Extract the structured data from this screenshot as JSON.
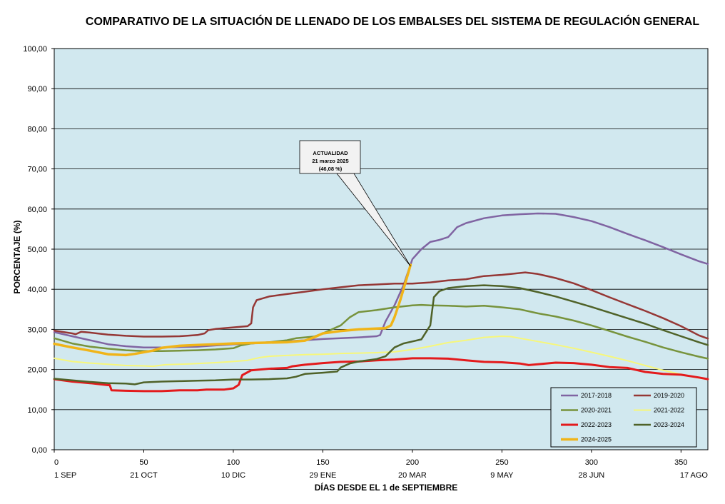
{
  "chart_data": {
    "type": "line",
    "title": "COMPARATIVO DE LA SITUACIÓN DE LLENADO DE LOS EMBALSES DEL SISTEMA DE REGULACIÓN GENERAL",
    "xlabel": "DÍAS DESDE EL 1 de SEPTIEMBRE",
    "ylabel": "PORCENTAJE (%)",
    "xlim": [
      0,
      365
    ],
    "ylim": [
      0,
      100
    ],
    "grid": true,
    "legend_position": "bottom-right",
    "x_ticks": [
      {
        "value": 0,
        "label": "0",
        "date": "1 SEP"
      },
      {
        "value": 50,
        "label": "50",
        "date": "21 OCT"
      },
      {
        "value": 100,
        "label": "100",
        "date": "10 DIC"
      },
      {
        "value": 150,
        "label": "150",
        "date": "29 ENE"
      },
      {
        "value": 200,
        "label": "200",
        "date": "20 MAR"
      },
      {
        "value": 250,
        "label": "250",
        "date": "9 MAY"
      },
      {
        "value": 300,
        "label": "300",
        "date": "28 JUN"
      },
      {
        "value": 350,
        "label": "350",
        "date": "17 AGO"
      }
    ],
    "y_ticks": [
      "0,00",
      "10,00",
      "20,00",
      "30,00",
      "40,00",
      "50,00",
      "60,00",
      "70,00",
      "80,00",
      "90,00",
      "100,00"
    ],
    "annotation": {
      "lines": [
        "ACTUALIDAD",
        "21 marzo 2025",
        "(46,08 %)"
      ],
      "x": 199,
      "y": 46.08
    },
    "series": [
      {
        "name": "2017-2018",
        "color": "#8064a2",
        "width": 2.5,
        "points": [
          [
            0,
            29.3
          ],
          [
            10,
            28.3
          ],
          [
            20,
            27.3
          ],
          [
            30,
            26.3
          ],
          [
            40,
            25.8
          ],
          [
            50,
            25.5
          ],
          [
            60,
            25.5
          ],
          [
            70,
            25.6
          ],
          [
            80,
            25.7
          ],
          [
            90,
            26.0
          ],
          [
            100,
            26.3
          ],
          [
            110,
            26.5
          ],
          [
            120,
            26.8
          ],
          [
            130,
            27.0
          ],
          [
            140,
            27.3
          ],
          [
            150,
            27.6
          ],
          [
            160,
            27.8
          ],
          [
            170,
            28.0
          ],
          [
            180,
            28.3
          ],
          [
            182,
            28.6
          ],
          [
            185,
            32.0
          ],
          [
            190,
            36.0
          ],
          [
            195,
            41.0
          ],
          [
            200,
            47.5
          ],
          [
            205,
            50.0
          ],
          [
            210,
            51.8
          ],
          [
            215,
            52.3
          ],
          [
            220,
            53.0
          ],
          [
            225,
            55.5
          ],
          [
            230,
            56.5
          ],
          [
            240,
            57.7
          ],
          [
            250,
            58.4
          ],
          [
            260,
            58.7
          ],
          [
            270,
            58.9
          ],
          [
            280,
            58.8
          ],
          [
            290,
            58.0
          ],
          [
            300,
            57.0
          ],
          [
            310,
            55.5
          ],
          [
            320,
            53.8
          ],
          [
            330,
            52.2
          ],
          [
            340,
            50.5
          ],
          [
            350,
            48.7
          ],
          [
            360,
            47.0
          ],
          [
            365,
            46.3
          ]
        ]
      },
      {
        "name": "2019-2020",
        "color": "#953735",
        "width": 2.5,
        "points": [
          [
            0,
            29.7
          ],
          [
            10,
            29.0
          ],
          [
            12,
            28.8
          ],
          [
            15,
            29.4
          ],
          [
            20,
            29.2
          ],
          [
            30,
            28.7
          ],
          [
            40,
            28.4
          ],
          [
            50,
            28.2
          ],
          [
            60,
            28.2
          ],
          [
            70,
            28.3
          ],
          [
            80,
            28.6
          ],
          [
            84,
            29.0
          ],
          [
            86,
            29.8
          ],
          [
            90,
            30.1
          ],
          [
            100,
            30.5
          ],
          [
            108,
            30.8
          ],
          [
            110,
            31.5
          ],
          [
            111,
            35.5
          ],
          [
            113,
            37.3
          ],
          [
            120,
            38.2
          ],
          [
            130,
            38.8
          ],
          [
            140,
            39.4
          ],
          [
            150,
            40.0
          ],
          [
            160,
            40.5
          ],
          [
            170,
            41.0
          ],
          [
            180,
            41.2
          ],
          [
            190,
            41.4
          ],
          [
            200,
            41.4
          ],
          [
            210,
            41.7
          ],
          [
            220,
            42.2
          ],
          [
            230,
            42.5
          ],
          [
            240,
            43.3
          ],
          [
            250,
            43.6
          ],
          [
            255,
            43.8
          ],
          [
            263,
            44.2
          ],
          [
            270,
            43.8
          ],
          [
            280,
            42.8
          ],
          [
            290,
            41.5
          ],
          [
            300,
            39.8
          ],
          [
            310,
            38.0
          ],
          [
            320,
            36.3
          ],
          [
            330,
            34.6
          ],
          [
            340,
            32.8
          ],
          [
            350,
            30.8
          ],
          [
            360,
            28.5
          ],
          [
            365,
            27.7
          ]
        ]
      },
      {
        "name": "2020-2021",
        "color": "#77933c",
        "width": 2.5,
        "points": [
          [
            0,
            27.8
          ],
          [
            10,
            26.5
          ],
          [
            20,
            25.7
          ],
          [
            30,
            25.2
          ],
          [
            40,
            24.8
          ],
          [
            50,
            24.6
          ],
          [
            60,
            24.6
          ],
          [
            70,
            24.7
          ],
          [
            80,
            24.8
          ],
          [
            90,
            25.0
          ],
          [
            100,
            25.3
          ],
          [
            104,
            26.0
          ],
          [
            110,
            26.5
          ],
          [
            120,
            26.8
          ],
          [
            130,
            27.3
          ],
          [
            135,
            27.8
          ],
          [
            145,
            28.2
          ],
          [
            150,
            29.0
          ],
          [
            155,
            30.0
          ],
          [
            160,
            31.0
          ],
          [
            165,
            33.0
          ],
          [
            170,
            34.3
          ],
          [
            180,
            34.8
          ],
          [
            190,
            35.5
          ],
          [
            200,
            36.0
          ],
          [
            205,
            36.1
          ],
          [
            210,
            36.0
          ],
          [
            220,
            35.9
          ],
          [
            230,
            35.7
          ],
          [
            240,
            35.9
          ],
          [
            250,
            35.5
          ],
          [
            260,
            35.0
          ],
          [
            270,
            34.0
          ],
          [
            280,
            33.2
          ],
          [
            290,
            32.2
          ],
          [
            300,
            31.0
          ],
          [
            310,
            29.6
          ],
          [
            320,
            28.2
          ],
          [
            330,
            26.9
          ],
          [
            340,
            25.5
          ],
          [
            350,
            24.3
          ],
          [
            360,
            23.2
          ],
          [
            365,
            22.7
          ]
        ]
      },
      {
        "name": "2021-2022",
        "color": "#f7f77a",
        "width": 2,
        "points": [
          [
            0,
            22.8
          ],
          [
            10,
            22.0
          ],
          [
            20,
            21.6
          ],
          [
            30,
            21.3
          ],
          [
            40,
            21.0
          ],
          [
            50,
            20.9
          ],
          [
            55,
            20.8
          ],
          [
            62,
            21.2
          ],
          [
            70,
            21.3
          ],
          [
            80,
            21.5
          ],
          [
            90,
            21.7
          ],
          [
            100,
            22.0
          ],
          [
            108,
            22.3
          ],
          [
            115,
            23.0
          ],
          [
            120,
            23.3
          ],
          [
            130,
            23.5
          ],
          [
            140,
            23.7
          ],
          [
            150,
            23.8
          ],
          [
            160,
            24.0
          ],
          [
            170,
            24.1
          ],
          [
            180,
            24.2
          ],
          [
            190,
            24.4
          ],
          [
            200,
            25.0
          ],
          [
            210,
            25.8
          ],
          [
            220,
            26.7
          ],
          [
            230,
            27.3
          ],
          [
            240,
            28.0
          ],
          [
            250,
            28.3
          ],
          [
            255,
            28.2
          ],
          [
            260,
            27.8
          ],
          [
            270,
            27.0
          ],
          [
            280,
            26.2
          ],
          [
            290,
            25.3
          ],
          [
            300,
            24.3
          ],
          [
            310,
            23.3
          ],
          [
            320,
            22.2
          ],
          [
            330,
            21.0
          ],
          [
            340,
            19.8
          ],
          [
            350,
            18.8
          ],
          [
            360,
            17.9
          ],
          [
            365,
            17.5
          ]
        ]
      },
      {
        "name": "2022-2023",
        "color": "#e31a1c",
        "width": 3,
        "points": [
          [
            0,
            17.6
          ],
          [
            10,
            17.0
          ],
          [
            20,
            16.6
          ],
          [
            30,
            16.1
          ],
          [
            31,
            16.1
          ],
          [
            32,
            14.8
          ],
          [
            40,
            14.7
          ],
          [
            50,
            14.6
          ],
          [
            60,
            14.6
          ],
          [
            70,
            14.8
          ],
          [
            80,
            14.8
          ],
          [
            85,
            15.0
          ],
          [
            95,
            15.0
          ],
          [
            100,
            15.3
          ],
          [
            103,
            16.2
          ],
          [
            105,
            18.6
          ],
          [
            110,
            19.8
          ],
          [
            115,
            20.0
          ],
          [
            120,
            20.2
          ],
          [
            130,
            20.4
          ],
          [
            133,
            20.8
          ],
          [
            140,
            21.2
          ],
          [
            150,
            21.6
          ],
          [
            160,
            21.9
          ],
          [
            170,
            22.0
          ],
          [
            180,
            22.3
          ],
          [
            190,
            22.5
          ],
          [
            200,
            22.8
          ],
          [
            210,
            22.8
          ],
          [
            220,
            22.7
          ],
          [
            230,
            22.3
          ],
          [
            240,
            21.9
          ],
          [
            250,
            21.8
          ],
          [
            260,
            21.5
          ],
          [
            265,
            21.1
          ],
          [
            270,
            21.3
          ],
          [
            280,
            21.7
          ],
          [
            290,
            21.6
          ],
          [
            300,
            21.2
          ],
          [
            310,
            20.6
          ],
          [
            320,
            20.4
          ],
          [
            330,
            19.4
          ],
          [
            340,
            18.9
          ],
          [
            350,
            18.7
          ],
          [
            360,
            18.0
          ],
          [
            365,
            17.6
          ]
        ]
      },
      {
        "name": "2023-2024",
        "color": "#4f6228",
        "width": 2.5,
        "points": [
          [
            0,
            17.7
          ],
          [
            10,
            17.3
          ],
          [
            20,
            16.9
          ],
          [
            30,
            16.6
          ],
          [
            40,
            16.5
          ],
          [
            45,
            16.3
          ],
          [
            50,
            16.8
          ],
          [
            60,
            17.0
          ],
          [
            70,
            17.1
          ],
          [
            80,
            17.2
          ],
          [
            90,
            17.3
          ],
          [
            100,
            17.5
          ],
          [
            110,
            17.5
          ],
          [
            120,
            17.6
          ],
          [
            130,
            17.8
          ],
          [
            135,
            18.2
          ],
          [
            140,
            18.9
          ],
          [
            150,
            19.2
          ],
          [
            158,
            19.5
          ],
          [
            160,
            20.5
          ],
          [
            165,
            21.5
          ],
          [
            170,
            22.0
          ],
          [
            180,
            22.6
          ],
          [
            185,
            23.3
          ],
          [
            190,
            25.5
          ],
          [
            195,
            26.5
          ],
          [
            200,
            27.0
          ],
          [
            205,
            27.5
          ],
          [
            210,
            31.0
          ],
          [
            212,
            38.0
          ],
          [
            215,
            39.5
          ],
          [
            220,
            40.3
          ],
          [
            230,
            40.8
          ],
          [
            240,
            41.0
          ],
          [
            250,
            40.8
          ],
          [
            260,
            40.3
          ],
          [
            270,
            39.3
          ],
          [
            280,
            38.2
          ],
          [
            290,
            36.9
          ],
          [
            300,
            35.6
          ],
          [
            310,
            34.2
          ],
          [
            320,
            32.8
          ],
          [
            330,
            31.4
          ],
          [
            340,
            29.8
          ],
          [
            350,
            28.3
          ],
          [
            360,
            26.8
          ],
          [
            365,
            26.1
          ]
        ]
      },
      {
        "name": "2024-2025",
        "color": "#f0b418",
        "width": 3.5,
        "points": [
          [
            0,
            26.4
          ],
          [
            10,
            25.5
          ],
          [
            20,
            24.7
          ],
          [
            30,
            23.8
          ],
          [
            40,
            23.6
          ],
          [
            45,
            23.9
          ],
          [
            50,
            24.3
          ],
          [
            55,
            24.7
          ],
          [
            60,
            25.4
          ],
          [
            70,
            25.9
          ],
          [
            80,
            26.1
          ],
          [
            90,
            26.3
          ],
          [
            100,
            26.5
          ],
          [
            110,
            26.6
          ],
          [
            120,
            26.7
          ],
          [
            130,
            26.8
          ],
          [
            140,
            27.2
          ],
          [
            145,
            28.0
          ],
          [
            150,
            29.0
          ],
          [
            160,
            29.6
          ],
          [
            170,
            30.0
          ],
          [
            180,
            30.2
          ],
          [
            185,
            30.3
          ],
          [
            188,
            31.0
          ],
          [
            190,
            33.0
          ],
          [
            193,
            37.0
          ],
          [
            195,
            40.0
          ],
          [
            197,
            43.0
          ],
          [
            199,
            46.08
          ]
        ]
      }
    ]
  }
}
